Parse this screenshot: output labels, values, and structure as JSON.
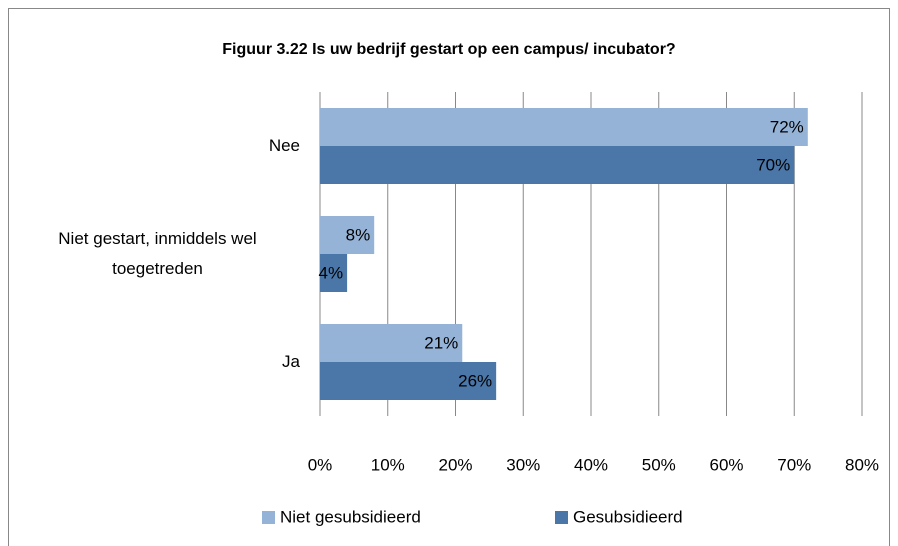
{
  "chart_data": {
    "type": "bar",
    "orientation": "horizontal",
    "title": "Figuur 3.22 Is uw bedrijf gestart op een campus/ incubator?",
    "categories": [
      "Nee",
      "Niet gestart, inmiddels wel toegetreden",
      "Ja"
    ],
    "series": [
      {
        "name": "Niet gesubsidieerd",
        "color": "#95b3d7",
        "values": [
          72,
          8,
          21
        ],
        "value_labels": [
          "72%",
          "8%",
          "21%"
        ]
      },
      {
        "name": "Gesubsidieerd",
        "color": "#4a76a8",
        "values": [
          70,
          4,
          26
        ],
        "value_labels": [
          "70%",
          "4%",
          "26%"
        ]
      }
    ],
    "xlim": [
      0,
      80
    ],
    "xticks": [
      {
        "value": 0,
        "label": "0%"
      },
      {
        "value": 10,
        "label": "10%"
      },
      {
        "value": 20,
        "label": "20%"
      },
      {
        "value": 30,
        "label": "30%"
      },
      {
        "value": 40,
        "label": "40%"
      },
      {
        "value": 50,
        "label": "50%"
      },
      {
        "value": 60,
        "label": "60%"
      },
      {
        "value": 70,
        "label": "70%"
      },
      {
        "value": 80,
        "label": "80%"
      }
    ],
    "grid": true,
    "legend": "bottom"
  }
}
